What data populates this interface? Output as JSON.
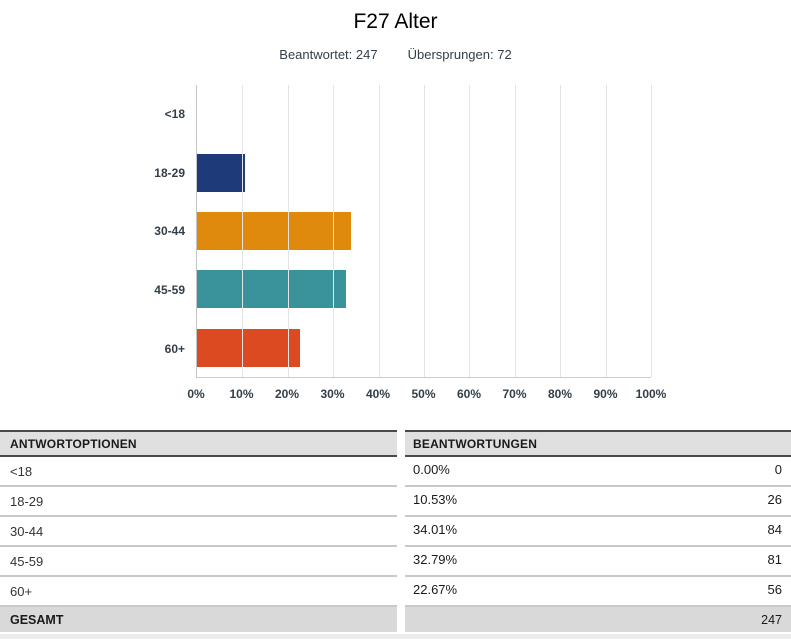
{
  "header": {
    "title": "F27 Alter",
    "answered_label": "Beantwortet:",
    "answered_value": "247",
    "skipped_label": "Übersprungen:",
    "skipped_value": "72"
  },
  "chart_data": {
    "type": "bar",
    "orientation": "horizontal",
    "title": "F27 Alter",
    "categories": [
      "<18",
      "18-29",
      "30-44",
      "45-59",
      "60+"
    ],
    "values": [
      0.0,
      10.53,
      34.01,
      32.79,
      22.67
    ],
    "value_unit": "%",
    "colors": [
      null,
      "#1f3a78",
      "#df8a0d",
      "#3a929b",
      "#dc4a21"
    ],
    "xticks": [
      "0%",
      "10%",
      "20%",
      "30%",
      "40%",
      "50%",
      "60%",
      "70%",
      "80%",
      "90%",
      "100%"
    ],
    "xlim": [
      0,
      100
    ],
    "grid": true,
    "gridline_color": "#e4e4e4",
    "legend": null
  },
  "table": {
    "headers": [
      "ANTWORTOPTIONEN",
      "BEANTWORTUNGEN"
    ],
    "rows": [
      {
        "option": "<18",
        "percent": "0.00%",
        "count": "0"
      },
      {
        "option": "18-29",
        "percent": "10.53%",
        "count": "26"
      },
      {
        "option": "30-44",
        "percent": "34.01%",
        "count": "84"
      },
      {
        "option": "45-59",
        "percent": "32.79%",
        "count": "81"
      },
      {
        "option": "60+",
        "percent": "22.67%",
        "count": "56"
      }
    ],
    "total": {
      "label": "GESAMT",
      "count": "247"
    }
  }
}
